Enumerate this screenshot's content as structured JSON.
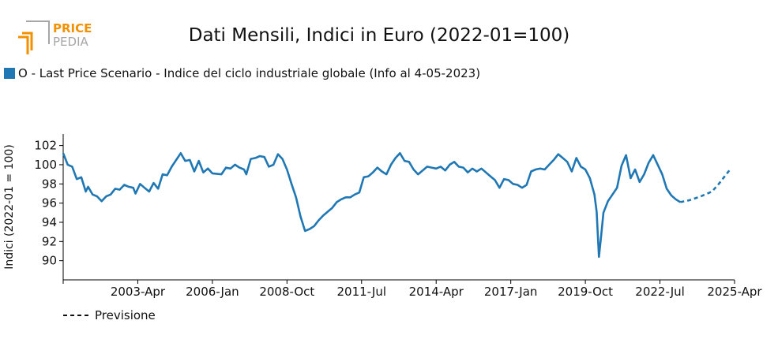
{
  "logo": {
    "line1": "PRICE",
    "line2": "PEDIA"
  },
  "colors": {
    "series": "#1f77b4",
    "logo_orange": "#f29100",
    "logo_grey": "#a6a6a6",
    "axis": "#000000"
  },
  "chart_data": {
    "type": "line",
    "title": "Dati Mensili, Indici in Euro (2022-01=100)",
    "ylabel": "Indici (2022-01 = 100)",
    "xlabel": "",
    "ylim": [
      88,
      103.2
    ],
    "xlim": [
      "2000-07",
      "2025-04"
    ],
    "yticks": [
      90,
      92,
      94,
      96,
      98,
      100,
      102
    ],
    "xticks": [
      "2003-Apr",
      "2006-Jan",
      "2008-Oct",
      "2011-Jul",
      "2014-Apr",
      "2017-Jan",
      "2019-Oct",
      "2022-Jul",
      "2025-Apr"
    ],
    "grid": false,
    "legend_position": "top-left",
    "series": [
      {
        "name": "O - Last Price Scenario - Indice del ciclo industriale globale (Info al 4-05-2023)",
        "style": "solid",
        "points": [
          [
            "2000-07",
            101.2
          ],
          [
            "2000-09",
            100.0
          ],
          [
            "2000-11",
            99.8
          ],
          [
            "2001-01",
            98.5
          ],
          [
            "2001-03",
            98.7
          ],
          [
            "2001-05",
            97.2
          ],
          [
            "2001-06",
            97.7
          ],
          [
            "2001-08",
            96.9
          ],
          [
            "2001-10",
            96.7
          ],
          [
            "2001-12",
            96.2
          ],
          [
            "2002-02",
            96.7
          ],
          [
            "2002-04",
            96.9
          ],
          [
            "2002-06",
            97.5
          ],
          [
            "2002-08",
            97.4
          ],
          [
            "2002-10",
            97.9
          ],
          [
            "2002-12",
            97.7
          ],
          [
            "2003-02",
            97.6
          ],
          [
            "2003-03",
            97.0
          ],
          [
            "2003-05",
            98.0
          ],
          [
            "2003-07",
            97.6
          ],
          [
            "2003-09",
            97.2
          ],
          [
            "2003-11",
            98.1
          ],
          [
            "2004-01",
            97.5
          ],
          [
            "2004-03",
            99.0
          ],
          [
            "2004-05",
            98.9
          ],
          [
            "2004-07",
            99.8
          ],
          [
            "2004-09",
            100.5
          ],
          [
            "2004-11",
            101.2
          ],
          [
            "2005-01",
            100.4
          ],
          [
            "2005-03",
            100.5
          ],
          [
            "2005-05",
            99.3
          ],
          [
            "2005-07",
            100.4
          ],
          [
            "2005-09",
            99.2
          ],
          [
            "2005-11",
            99.6
          ],
          [
            "2006-01",
            99.1
          ],
          [
            "2006-05",
            99.0
          ],
          [
            "2006-07",
            99.7
          ],
          [
            "2006-09",
            99.6
          ],
          [
            "2006-11",
            100.0
          ],
          [
            "2007-01",
            99.7
          ],
          [
            "2007-03",
            99.5
          ],
          [
            "2007-04",
            99.0
          ],
          [
            "2007-06",
            100.6
          ],
          [
            "2007-08",
            100.7
          ],
          [
            "2007-10",
            100.9
          ],
          [
            "2007-12",
            100.8
          ],
          [
            "2008-02",
            99.8
          ],
          [
            "2008-04",
            100.0
          ],
          [
            "2008-06",
            101.1
          ],
          [
            "2008-08",
            100.6
          ],
          [
            "2008-10",
            99.5
          ],
          [
            "2008-12",
            98.0
          ],
          [
            "2009-02",
            96.6
          ],
          [
            "2009-04",
            94.6
          ],
          [
            "2009-06",
            93.1
          ],
          [
            "2009-08",
            93.3
          ],
          [
            "2009-10",
            93.6
          ],
          [
            "2009-12",
            94.2
          ],
          [
            "2010-02",
            94.7
          ],
          [
            "2010-04",
            95.1
          ],
          [
            "2010-06",
            95.5
          ],
          [
            "2010-08",
            96.1
          ],
          [
            "2010-10",
            96.4
          ],
          [
            "2010-12",
            96.6
          ],
          [
            "2011-02",
            96.6
          ],
          [
            "2011-04",
            96.9
          ],
          [
            "2011-06",
            97.1
          ],
          [
            "2011-08",
            98.7
          ],
          [
            "2011-10",
            98.8
          ],
          [
            "2011-12",
            99.2
          ],
          [
            "2012-02",
            99.7
          ],
          [
            "2012-04",
            99.3
          ],
          [
            "2012-06",
            99.0
          ],
          [
            "2012-08",
            100.0
          ],
          [
            "2012-10",
            100.7
          ],
          [
            "2012-12",
            101.2
          ],
          [
            "2013-02",
            100.4
          ],
          [
            "2013-04",
            100.3
          ],
          [
            "2013-06",
            99.5
          ],
          [
            "2013-08",
            99.0
          ],
          [
            "2013-10",
            99.4
          ],
          [
            "2013-12",
            99.8
          ],
          [
            "2014-02",
            99.7
          ],
          [
            "2014-04",
            99.6
          ],
          [
            "2014-06",
            99.8
          ],
          [
            "2014-08",
            99.4
          ],
          [
            "2014-10",
            100.0
          ],
          [
            "2014-12",
            100.3
          ],
          [
            "2015-02",
            99.8
          ],
          [
            "2015-04",
            99.7
          ],
          [
            "2015-06",
            99.2
          ],
          [
            "2015-08",
            99.6
          ],
          [
            "2015-10",
            99.3
          ],
          [
            "2015-12",
            99.6
          ],
          [
            "2016-02",
            99.2
          ],
          [
            "2016-04",
            98.8
          ],
          [
            "2016-06",
            98.4
          ],
          [
            "2016-08",
            97.6
          ],
          [
            "2016-10",
            98.5
          ],
          [
            "2016-12",
            98.4
          ],
          [
            "2017-02",
            98.0
          ],
          [
            "2017-04",
            97.9
          ],
          [
            "2017-06",
            97.6
          ],
          [
            "2017-08",
            97.9
          ],
          [
            "2017-10",
            99.3
          ],
          [
            "2017-12",
            99.5
          ],
          [
            "2018-02",
            99.6
          ],
          [
            "2018-04",
            99.5
          ],
          [
            "2018-06",
            100.0
          ],
          [
            "2018-08",
            100.5
          ],
          [
            "2018-10",
            101.1
          ],
          [
            "2018-12",
            100.7
          ],
          [
            "2019-02",
            100.3
          ],
          [
            "2019-04",
            99.3
          ],
          [
            "2019-06",
            100.7
          ],
          [
            "2019-08",
            99.8
          ],
          [
            "2019-10",
            99.5
          ],
          [
            "2019-12",
            98.6
          ],
          [
            "2020-02",
            96.9
          ],
          [
            "2020-03",
            95.1
          ],
          [
            "2020-04",
            90.4
          ],
          [
            "2020-05",
            92.6
          ],
          [
            "2020-06",
            95.0
          ],
          [
            "2020-08",
            96.2
          ],
          [
            "2020-10",
            96.9
          ],
          [
            "2020-12",
            97.6
          ],
          [
            "2021-02",
            99.9
          ],
          [
            "2021-04",
            101.0
          ],
          [
            "2021-06",
            98.6
          ],
          [
            "2021-08",
            99.5
          ],
          [
            "2021-10",
            98.2
          ],
          [
            "2021-12",
            99.0
          ],
          [
            "2022-02",
            100.2
          ],
          [
            "2022-04",
            101.0
          ],
          [
            "2022-06",
            100.0
          ],
          [
            "2022-08",
            99.0
          ],
          [
            "2022-10",
            97.5
          ],
          [
            "2022-12",
            96.8
          ],
          [
            "2023-02",
            96.4
          ],
          [
            "2023-04",
            96.1
          ]
        ]
      },
      {
        "name": "Previsione",
        "style": "dashed",
        "points": [
          [
            "2023-04",
            96.1
          ],
          [
            "2023-08",
            96.3
          ],
          [
            "2024-01",
            96.7
          ],
          [
            "2024-06",
            97.2
          ],
          [
            "2024-09",
            98.0
          ],
          [
            "2025-02",
            99.5
          ]
        ]
      }
    ]
  }
}
